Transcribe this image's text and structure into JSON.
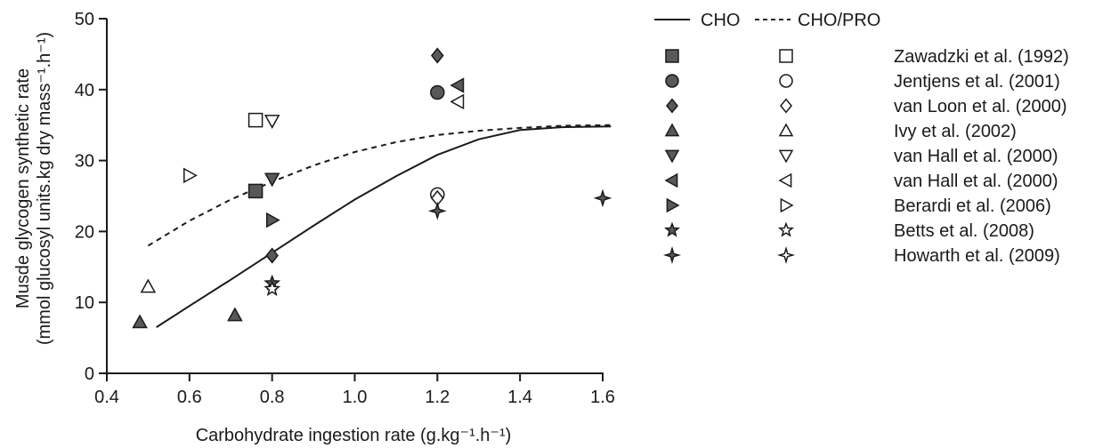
{
  "chart_data": {
    "type": "scatter",
    "xlabel": "Carbohydrate ingestion rate (g.kg⁻¹.h⁻¹)",
    "ylabel_line1": "Musde glycogen synthetic rate",
    "ylabel_line2": "(mmol glucosyl units.kg dry mass⁻¹.h⁻¹)",
    "xlim": [
      0.4,
      1.6
    ],
    "ylim": [
      0,
      50
    ],
    "x_ticks": [
      0.4,
      0.6,
      0.8,
      1.0,
      1.2,
      1.4,
      1.6
    ],
    "x_tick_labels": [
      "0.4",
      "0.6",
      "0.8",
      "1.0",
      "1.2",
      "1.4",
      "1.6"
    ],
    "y_ticks": [
      0,
      10,
      20,
      30,
      40,
      50
    ],
    "y_tick_labels": [
      "0",
      "10",
      "20",
      "30",
      "40",
      "50"
    ],
    "grid": false,
    "legend_placement": "right",
    "legend_line_headers": {
      "cho": "CHO",
      "cho_pro": "CHO/PRO"
    },
    "colors": {
      "filled": "#595959",
      "open": "#ffffff",
      "stroke": "#1a1a1a"
    },
    "curves": [
      {
        "name": "CHO",
        "style": "solid",
        "x": [
          0.52,
          0.6,
          0.7,
          0.8,
          0.9,
          1.0,
          1.1,
          1.2,
          1.3,
          1.4,
          1.5,
          1.62
        ],
        "y": [
          6.5,
          9.5,
          13.2,
          17.0,
          20.8,
          24.5,
          27.8,
          30.8,
          33.0,
          34.3,
          34.7,
          34.8
        ]
      },
      {
        "name": "CHO/PRO",
        "style": "dashed",
        "x": [
          0.5,
          0.6,
          0.7,
          0.8,
          0.9,
          1.0,
          1.1,
          1.2,
          1.3,
          1.4,
          1.5,
          1.62
        ],
        "y": [
          18.0,
          21.5,
          24.5,
          27.0,
          29.3,
          31.2,
          32.6,
          33.6,
          34.2,
          34.6,
          34.9,
          35.0
        ]
      }
    ],
    "series": [
      {
        "name": "Zawadzki et al. (1992)",
        "marker": "square",
        "cho": [
          [
            0.76,
            25.7
          ]
        ],
        "cho_pro": [
          [
            0.76,
            35.7
          ]
        ]
      },
      {
        "name": "Jentjens et al. (2001)",
        "marker": "circle",
        "cho": [
          [
            1.2,
            39.6
          ]
        ],
        "cho_pro": [
          [
            1.2,
            25.2
          ]
        ]
      },
      {
        "name": "van Loon et al. (2000)",
        "marker": "diamond",
        "cho": [
          [
            0.8,
            16.6
          ],
          [
            1.2,
            44.8
          ]
        ],
        "cho_pro": [
          [
            1.2,
            24.7
          ]
        ]
      },
      {
        "name": "Ivy et al. (2002)",
        "marker": "triangle-up",
        "cho": [
          [
            0.48,
            7.2
          ],
          [
            0.71,
            8.2
          ]
        ],
        "cho_pro": [
          [
            0.5,
            12.2
          ]
        ]
      },
      {
        "name": "van Hall et al. (2000)",
        "marker": "triangle-down",
        "cho": [
          [
            0.8,
            27.4
          ]
        ],
        "cho_pro": [
          [
            0.8,
            35.6
          ]
        ]
      },
      {
        "name": "van Hall et al. (2000)",
        "marker": "triangle-left",
        "cho": [
          [
            1.25,
            40.6
          ]
        ],
        "cho_pro": [
          [
            1.25,
            38.3
          ]
        ]
      },
      {
        "name": "Berardi et al. (2006)",
        "marker": "triangle-right",
        "cho": [
          [
            0.8,
            21.6
          ]
        ],
        "cho_pro": [
          [
            0.6,
            27.9
          ]
        ]
      },
      {
        "name": "Betts et al. (2008)",
        "marker": "star5",
        "cho": [
          [
            0.8,
            12.7
          ]
        ],
        "cho_pro": [
          [
            0.8,
            11.9
          ]
        ]
      },
      {
        "name": "Howarth et al. (2009)",
        "marker": "star4",
        "cho": [
          [
            1.2,
            22.9
          ],
          [
            1.6,
            24.7
          ]
        ],
        "cho_pro": []
      }
    ]
  }
}
